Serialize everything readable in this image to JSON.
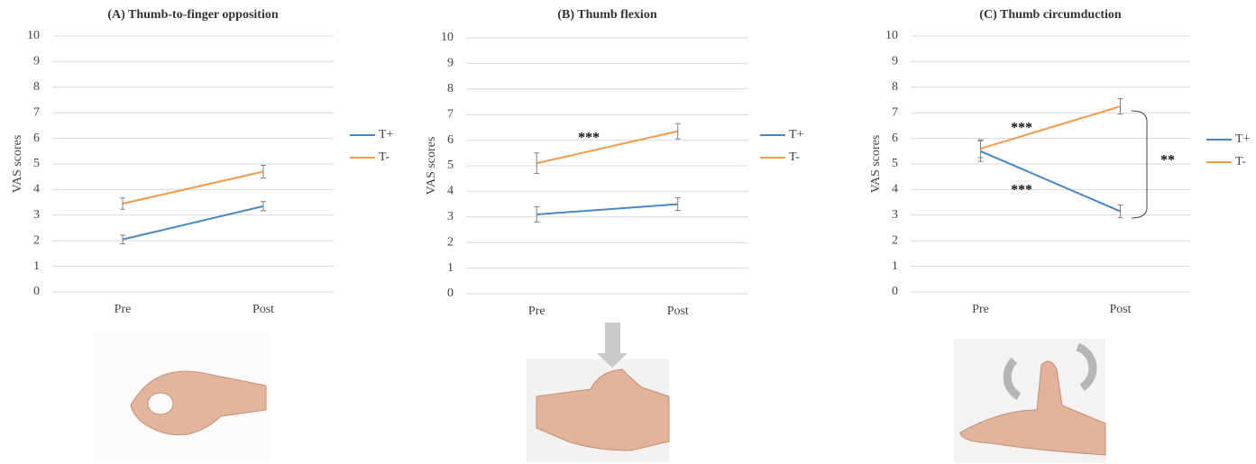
{
  "chart_data": [
    {
      "type": "line",
      "title": "(A) Thumb-to-finger opposition",
      "y_label": "VAS scores",
      "categories": [
        "Pre",
        "Post"
      ],
      "series": [
        {
          "name": "T+",
          "color": "#4a86c5",
          "values": [
            2.05,
            3.35
          ],
          "errors": [
            0.17,
            0.18
          ]
        },
        {
          "name": "T-",
          "color": "#f39a4b",
          "values": [
            3.45,
            4.7
          ],
          "errors": [
            0.22,
            0.25
          ]
        }
      ],
      "ylim": [
        0,
        10
      ],
      "yticks": [
        0,
        1,
        2,
        3,
        4,
        5,
        6,
        7,
        8,
        9,
        10
      ],
      "grid": true,
      "annotations": []
    },
    {
      "type": "line",
      "title": "(B) Thumb flexion",
      "y_label": "VAS scores",
      "categories": [
        "Pre",
        "Post"
      ],
      "series": [
        {
          "name": "T+",
          "color": "#4a86c5",
          "values": [
            3.1,
            3.5
          ],
          "errors": [
            0.3,
            0.25
          ]
        },
        {
          "name": "T-",
          "color": "#f39a4b",
          "values": [
            5.1,
            6.35
          ],
          "errors": [
            0.4,
            0.3
          ]
        }
      ],
      "ylim": [
        0,
        10
      ],
      "yticks": [
        0,
        1,
        2,
        3,
        4,
        5,
        6,
        7,
        8,
        9,
        10
      ],
      "grid": true,
      "annotations": [
        {
          "text": "***"
        }
      ]
    },
    {
      "type": "line",
      "title": "(C) Thumb circumduction",
      "y_label": "VAS scores",
      "categories": [
        "Pre",
        "Post"
      ],
      "series": [
        {
          "name": "T+",
          "color": "#4a86c5",
          "values": [
            5.5,
            3.15
          ],
          "errors": [
            0.4,
            0.25
          ]
        },
        {
          "name": "T-",
          "color": "#f39a4b",
          "values": [
            5.6,
            7.25
          ],
          "errors": [
            0.35,
            0.3
          ]
        }
      ],
      "ylim": [
        0,
        10
      ],
      "yticks": [
        0,
        1,
        2,
        3,
        4,
        5,
        6,
        7,
        8,
        9,
        10
      ],
      "grid": true,
      "annotations": [
        {
          "text": "***"
        },
        {
          "text": "***"
        },
        {
          "text": "**"
        }
      ]
    }
  ]
}
